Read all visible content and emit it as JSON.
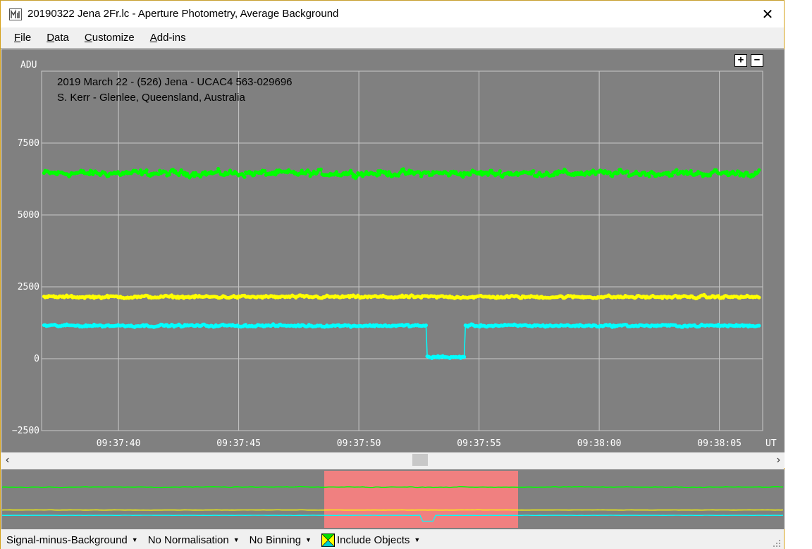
{
  "window": {
    "title": "20190322 Jena 2Fr.lc - Aperture Photometry, Average Background",
    "close_glyph": "✕"
  },
  "menu": {
    "items": [
      {
        "label": "File",
        "accel": "F",
        "rest": "ile"
      },
      {
        "label": "Data",
        "accel": "D",
        "rest": "ata"
      },
      {
        "label": "Customize",
        "accel": "C",
        "rest": "ustomize"
      },
      {
        "label": "Add-ins",
        "accel": "A",
        "rest": "dd-ins"
      }
    ]
  },
  "plot": {
    "zoom_in": "+",
    "zoom_out": "−",
    "annotation_line1": "2019 March 22 - (526) Jena - UCAC4 563-029696",
    "annotation_line2": "S. Kerr - Glenlee, Queensland, Australia"
  },
  "chart_data": {
    "type": "scatter",
    "ylabel": "ADU",
    "xlabel": "UT",
    "ylim": [
      -2500,
      10000
    ],
    "y_ticks": [
      "7500",
      "5000",
      "2500",
      "0",
      "−2500"
    ],
    "y_tick_values": [
      7500,
      5000,
      2500,
      0,
      -2500
    ],
    "x_ticks": [
      "09:37:40",
      "09:37:45",
      "09:37:50",
      "09:37:55",
      "09:38:00",
      "09:38:05"
    ],
    "x_tick_seconds": [
      40,
      45,
      50,
      55,
      60,
      65
    ],
    "xlim_seconds": [
      36.8,
      66.8
    ],
    "grid": true,
    "series": [
      {
        "color": "#00ff00",
        "mean": 6450,
        "spread": 300
      },
      {
        "color": "#ffff00",
        "mean": 2150,
        "spread": 130
      },
      {
        "color": "#00ffff",
        "mean": 1150,
        "spread": 110,
        "dip_start": 52.8,
        "dip_end": 54.4,
        "dip_level": 60
      }
    ]
  },
  "overview": {
    "highlight_color": "#f08080"
  },
  "statusbar": {
    "mode": "Signal-minus-Background",
    "normalisation": "No Normalisation",
    "binning": "No Binning",
    "include_objects": "Include Objects"
  }
}
